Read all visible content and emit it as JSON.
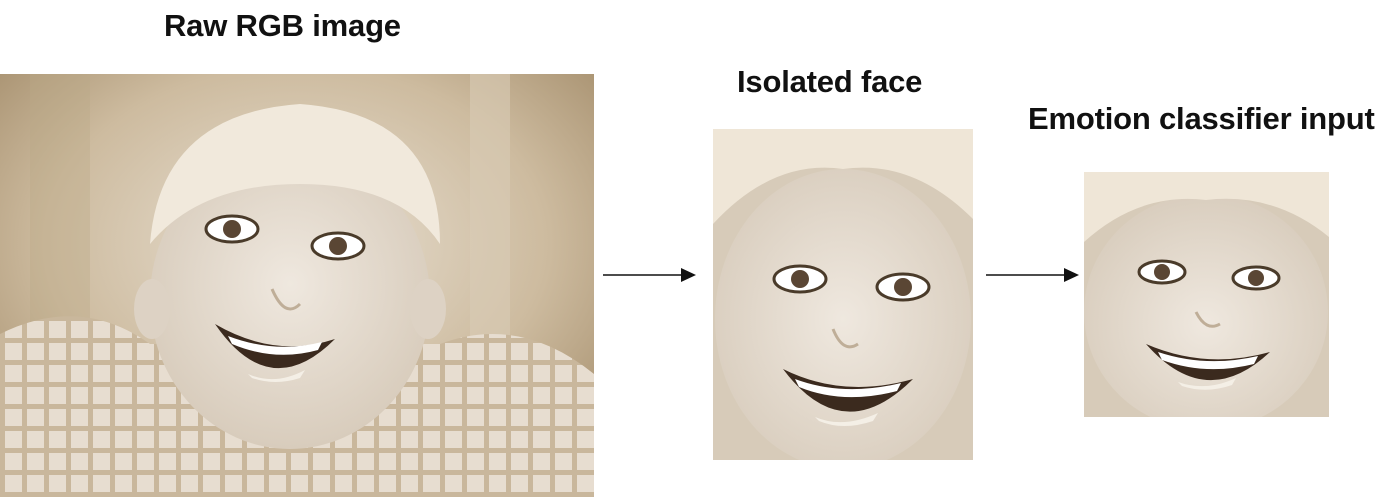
{
  "stages": [
    {
      "label": "Raw RGB image",
      "image": "full-scene-portrait-photo"
    },
    {
      "label": "Isolated face",
      "image": "cropped-face-photo"
    },
    {
      "label": "Emotion classifier input",
      "image": "resized-face-photo"
    }
  ],
  "connectors": [
    "right-arrow",
    "right-arrow"
  ],
  "colors": {
    "sepia_light": "#e6ddd0",
    "sepia_mid": "#cbb99f",
    "sepia_dark": "#8a7558",
    "hair": "#efe6d6",
    "skin": "#e3dbd1",
    "text": "#111111"
  }
}
